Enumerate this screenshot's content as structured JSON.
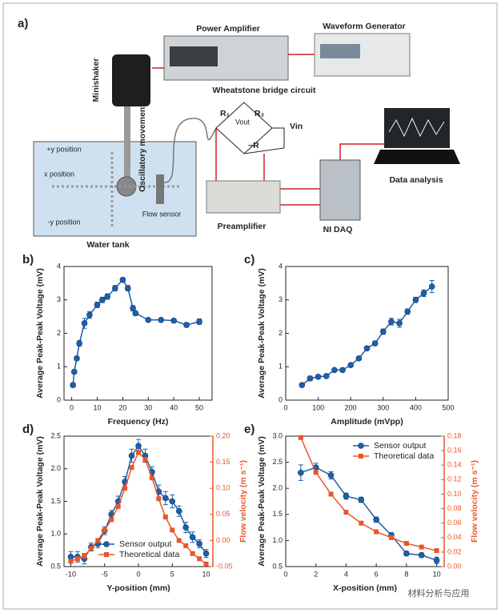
{
  "diagram": {
    "label": "a)",
    "power_amplifier": "Power Amplifier",
    "waveform_generator": "Waveform Generator",
    "minishaker": "Minishaker",
    "oscillatory": "Oscillatory movement",
    "bridge": "Wheatstone bridge circuit",
    "r1": "R₁",
    "r2": "R₂",
    "vout": "Vout",
    "vin": "Vin",
    "rvar": "~R",
    "plus_y": "+y position",
    "x_pos": "x position",
    "minus_y": "-y position",
    "flow_sensor": "Flow sensor",
    "water_tank": "Water tank",
    "preamplifier": "Preamplifier",
    "daq": "NI DAQ",
    "data_analysis": "Data analysis",
    "watermark": "材料分析与应用"
  },
  "chart_data": [
    {
      "type": "line",
      "label": "b)",
      "xlabel": "Frequency (Hz)",
      "ylabel": "Average Peak-Peak Voltage (mV)",
      "xlim": [
        -3,
        55
      ],
      "xticks": [
        0,
        10,
        20,
        30,
        40,
        50
      ],
      "ylim": [
        0,
        4
      ],
      "yticks": [
        0,
        1,
        2,
        3,
        4
      ],
      "series": [
        {
          "name": "Sensor output",
          "color": "#1f5fa8",
          "marker": "circle",
          "x": [
            0.5,
            1,
            2,
            3,
            5,
            7,
            10,
            12,
            14,
            17,
            20,
            22,
            24,
            25,
            30,
            35,
            40,
            45,
            50
          ],
          "values": [
            0.45,
            0.85,
            1.25,
            1.7,
            2.3,
            2.55,
            2.85,
            3.0,
            3.1,
            3.35,
            3.6,
            3.35,
            2.75,
            2.6,
            2.4,
            2.4,
            2.38,
            2.25,
            2.35
          ],
          "errors": [
            0.06,
            0.06,
            0.06,
            0.08,
            0.15,
            0.1,
            0.08,
            0.08,
            0.08,
            0.08,
            0.06,
            0.08,
            0.08,
            0.06,
            0.05,
            0.05,
            0.05,
            0.06,
            0.08
          ]
        }
      ]
    },
    {
      "type": "line",
      "label": "c)",
      "xlabel": "Amplitude (mVpp)",
      "ylabel": "Average Peak-Peak Voltage (mV)",
      "xlim": [
        0,
        500
      ],
      "xticks": [
        0,
        100,
        200,
        300,
        400,
        500
      ],
      "ylim": [
        0,
        4
      ],
      "yticks": [
        0,
        1,
        2,
        3,
        4
      ],
      "series": [
        {
          "name": "Sensor output",
          "color": "#1f5fa8",
          "marker": "circle",
          "x": [
            50,
            75,
            100,
            125,
            150,
            175,
            200,
            225,
            250,
            275,
            300,
            325,
            350,
            375,
            400,
            425,
            450
          ],
          "values": [
            0.45,
            0.65,
            0.7,
            0.72,
            0.9,
            0.9,
            1.05,
            1.25,
            1.55,
            1.7,
            2.05,
            2.35,
            2.3,
            2.65,
            3.0,
            3.2,
            3.4
          ],
          "errors": [
            0.05,
            0.07,
            0.05,
            0.05,
            0.05,
            0.05,
            0.05,
            0.05,
            0.06,
            0.06,
            0.08,
            0.1,
            0.12,
            0.08,
            0.08,
            0.1,
            0.18
          ]
        }
      ]
    },
    {
      "type": "line",
      "label": "d)",
      "xlabel": "Y-position (mm)",
      "ylabel": "Average Peak-Peak Voltage (mV)",
      "y2label": "Flow velocity (m s⁻¹)",
      "xlim": [
        -11,
        11
      ],
      "xticks": [
        -10,
        -5,
        0,
        5,
        10
      ],
      "ylim": [
        0.5,
        2.5
      ],
      "yticks": [
        0.5,
        {
          "value": 1.0,
          "label": "1.0"
        },
        1.5,
        {
          "value": 2.0,
          "label": "2.0"
        },
        2.5
      ],
      "y2lim": [
        -0.05,
        0.2
      ],
      "y2ticks": [
        -0.05,
        {
          "value": 0,
          "label": "0.00"
        },
        0.05,
        {
          "value": 0.1,
          "label": "0.10"
        },
        0.15,
        {
          "value": 0.2,
          "label": "0.20"
        }
      ],
      "legend": "lower center",
      "series": [
        {
          "name": "Sensor output",
          "color": "#1f5fa8",
          "marker": "circle",
          "x": [
            -10,
            -9,
            -8,
            -7,
            -6,
            -5,
            -4,
            -3,
            -2,
            -1,
            0,
            1,
            2,
            3,
            4,
            5,
            6,
            7,
            8,
            9,
            10
          ],
          "values": [
            0.65,
            0.65,
            0.62,
            0.8,
            0.85,
            1.05,
            1.3,
            1.5,
            1.8,
            2.2,
            2.35,
            2.2,
            1.95,
            1.65,
            1.55,
            1.5,
            1.35,
            1.1,
            0.95,
            0.85,
            0.7
          ],
          "errors": [
            0.08,
            0.08,
            0.08,
            0.06,
            0.06,
            0.06,
            0.06,
            0.08,
            0.08,
            0.1,
            0.1,
            0.1,
            0.08,
            0.1,
            0.1,
            0.1,
            0.08,
            0.08,
            0.08,
            0.06,
            0.06
          ]
        },
        {
          "name": "Theoretical data",
          "color": "#e8562a",
          "marker": "square",
          "axis": "y2",
          "x": [
            -10,
            -9,
            -8,
            -7,
            -6,
            -5,
            -4,
            -3,
            -2,
            -1,
            0,
            1,
            2,
            3,
            4,
            5,
            6,
            7,
            8,
            9,
            10
          ],
          "values": [
            -0.04,
            -0.035,
            -0.03,
            -0.015,
            0,
            0.02,
            0.04,
            0.065,
            0.1,
            0.14,
            0.169,
            0.155,
            0.12,
            0.08,
            0.045,
            0.02,
            0,
            -0.01,
            -0.025,
            -0.035,
            -0.045
          ]
        }
      ]
    },
    {
      "type": "line",
      "label": "e)",
      "xlabel": "X-position (mm)",
      "ylabel": "Average Peak-Peak Voltage (mV)",
      "y2label": "Flow velocity (m s⁻¹)",
      "xlim": [
        0,
        10.5
      ],
      "xticks": [
        0,
        2,
        4,
        6,
        8,
        10
      ],
      "ylim": [
        0.5,
        3
      ],
      "yticks": [
        0.5,
        {
          "value": 1.0,
          "label": "1.0"
        },
        1.5,
        {
          "value": 2.0,
          "label": "2.0"
        },
        2.5,
        {
          "value": 3.0,
          "label": "3.0"
        }
      ],
      "y2lim": [
        0,
        0.18
      ],
      "y2ticks": [
        {
          "value": 0,
          "label": "0.00"
        },
        0.02,
        0.04,
        0.06,
        0.08,
        {
          "value": 0.1,
          "label": "0.10"
        },
        0.12,
        0.14,
        0.16,
        0.18
      ],
      "legend": "upper right",
      "series": [
        {
          "name": "Sensor output",
          "color": "#1f5fa8",
          "marker": "circle",
          "x": [
            1,
            2,
            3,
            4,
            5,
            6,
            7,
            8,
            9,
            10
          ],
          "values": [
            2.3,
            2.4,
            2.25,
            1.85,
            1.78,
            1.4,
            1.1,
            0.75,
            0.72,
            0.62
          ],
          "errors": [
            0.15,
            0.08,
            0.07,
            0.06,
            0.05,
            0.05,
            0.05,
            0.04,
            0.04,
            0.06
          ]
        },
        {
          "name": "Theoretical data",
          "color": "#e8562a",
          "marker": "square",
          "axis": "y2",
          "x": [
            1,
            2,
            3,
            4,
            5,
            6,
            7,
            8,
            9,
            10
          ],
          "values": [
            0.178,
            0.13,
            0.1,
            0.075,
            0.06,
            0.048,
            0.04,
            0.032,
            0.027,
            0.022
          ]
        }
      ]
    }
  ]
}
